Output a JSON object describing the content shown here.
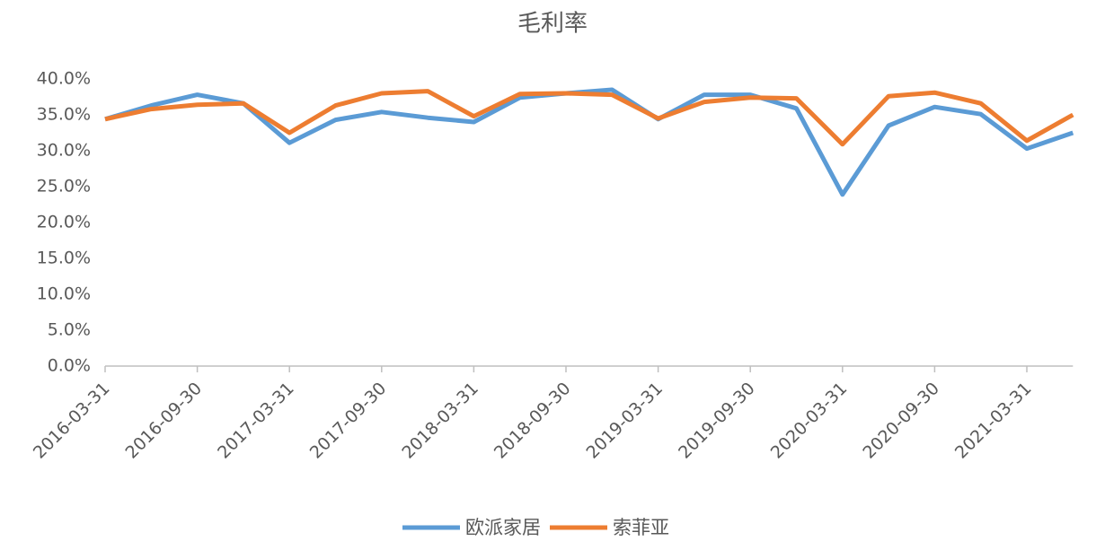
{
  "chart_data": {
    "type": "line",
    "title": "毛利率",
    "categories": [
      "2016-03-31",
      null,
      "2016-09-30",
      null,
      "2017-03-31",
      null,
      "2017-09-30",
      null,
      "2018-03-31",
      null,
      "2018-09-30",
      null,
      "2019-03-31",
      null,
      "2019-09-30",
      null,
      "2020-03-31",
      null,
      "2020-09-30",
      null,
      "2021-03-31",
      null
    ],
    "series": [
      {
        "name": "欧派家居",
        "color": "#5b9bd5",
        "values": [
          34.4,
          36.3,
          37.8,
          36.6,
          31.1,
          34.3,
          35.4,
          34.6,
          34.0,
          37.4,
          38.0,
          38.5,
          34.4,
          37.8,
          37.8,
          35.9,
          23.9,
          33.5,
          36.1,
          35.1,
          30.3,
          32.5
        ]
      },
      {
        "name": "索菲亚",
        "color": "#ed7d31",
        "values": [
          34.4,
          35.8,
          36.4,
          36.6,
          32.5,
          36.3,
          38.0,
          38.3,
          34.8,
          37.9,
          38.0,
          37.8,
          34.5,
          36.8,
          37.4,
          37.3,
          30.9,
          37.6,
          38.1,
          36.6,
          31.4,
          35.0
        ]
      }
    ],
    "ylim": [
      0,
      40
    ],
    "yticks": [
      {
        "value": 0,
        "label": "0.0%"
      },
      {
        "value": 5,
        "label": "5.0%"
      },
      {
        "value": 10,
        "label": "10.0%"
      },
      {
        "value": 15,
        "label": "15.0%"
      },
      {
        "value": 20,
        "label": "20.0%"
      },
      {
        "value": 25,
        "label": "25.0%"
      },
      {
        "value": 30,
        "label": "30.0%"
      },
      {
        "value": 35,
        "label": "35.0%"
      },
      {
        "value": 40,
        "label": "40.0%"
      }
    ],
    "grid": false
  }
}
